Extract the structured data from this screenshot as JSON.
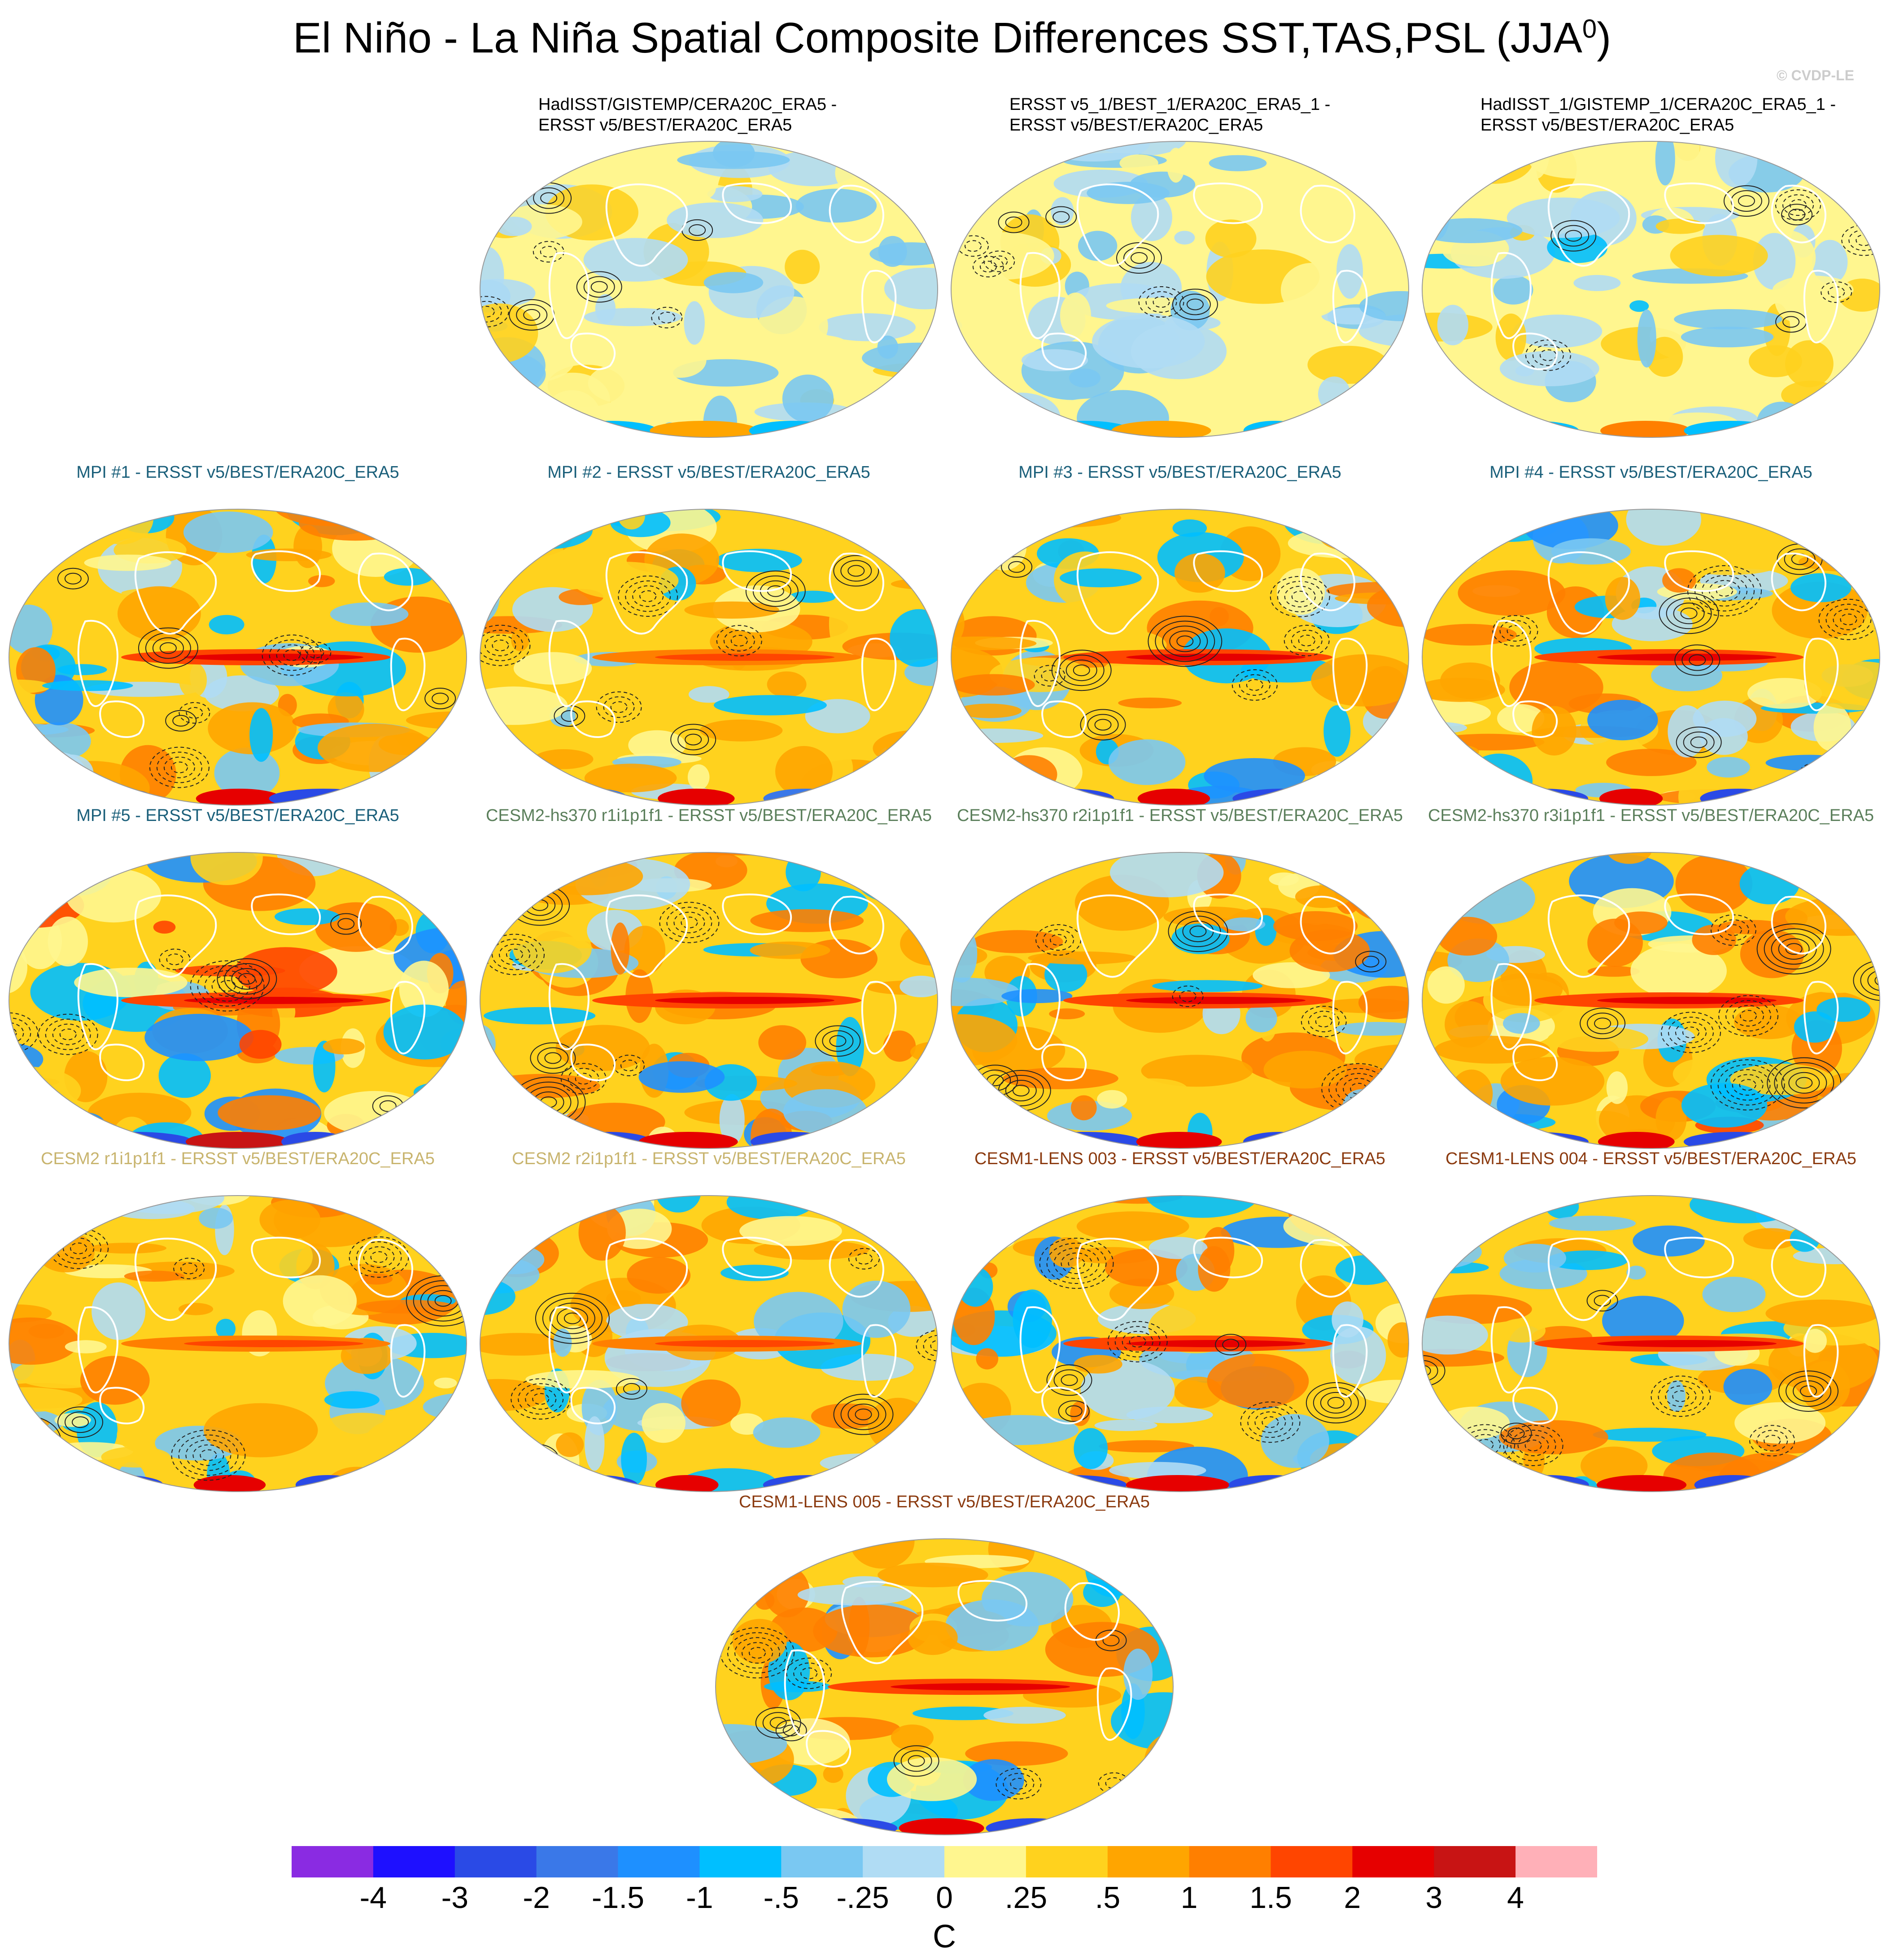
{
  "figure": {
    "title_main": "El Niño - La Niña Spatial Composite Differences SST,TAS,PSL (JJA",
    "title_sup": "0",
    "title_close": ")",
    "watermark": "© CVDP-LE"
  },
  "chart_data": {
    "type": "heatmap",
    "projection": "global-ellipse",
    "fields": [
      "SST",
      "TAS",
      "PSL"
    ],
    "season": "JJA0",
    "contours": "PSL (solid positive, dashed negative)",
    "colorbar": {
      "unit": "C",
      "ticks": [
        "-4",
        "-3",
        "-2",
        "-1.5",
        "-1",
        "-.5",
        "-.25",
        "0",
        ".25",
        ".5",
        "1",
        "1.5",
        "2",
        "3",
        "4"
      ],
      "colors": [
        "#8a2be2",
        "#1e10ff",
        "#2a4ae6",
        "#3a78e8",
        "#1e90ff",
        "#00bfff",
        "#7ac8f2",
        "#b0dcf4",
        "#fff68f",
        "#ffd21e",
        "#ffa500",
        "#ff7f00",
        "#ff4500",
        "#e60000",
        "#c81414",
        "#ffb0b8"
      ]
    },
    "panels": [
      {
        "id": "obs1",
        "label": "HadISST/GISTEMP/CERA20C_ERA5 -\nERSST v5/BEST/ERA20C_ERA5",
        "color": "#000000",
        "intensity": 0.35,
        "seed": 3
      },
      {
        "id": "obs2",
        "label": "ERSST v5_1/BEST_1/ERA20C_ERA5_1 -\nERSST v5/BEST/ERA20C_ERA5",
        "color": "#000000",
        "intensity": 0.35,
        "seed": 7
      },
      {
        "id": "obs3",
        "label": "HadISST_1/GISTEMP_1/CERA20C_ERA5_1 -\nERSST v5/BEST/ERA20C_ERA5",
        "color": "#000000",
        "intensity": 0.4,
        "seed": 11
      },
      {
        "id": "mpi1",
        "label": "MPI #1 - ERSST v5/BEST/ERA20C_ERA5",
        "color": "#1a5f7a",
        "intensity": 1.0,
        "seed": 13
      },
      {
        "id": "mpi2",
        "label": "MPI #2 - ERSST v5/BEST/ERA20C_ERA5",
        "color": "#1a5f7a",
        "intensity": 0.8,
        "seed": 17
      },
      {
        "id": "mpi3",
        "label": "MPI #3 - ERSST v5/BEST/ERA20C_ERA5",
        "color": "#1a5f7a",
        "intensity": 1.0,
        "seed": 19
      },
      {
        "id": "mpi4",
        "label": "MPI #4 - ERSST v5/BEST/ERA20C_ERA5",
        "color": "#1a5f7a",
        "intensity": 1.0,
        "seed": 23
      },
      {
        "id": "mpi5",
        "label": "MPI #5 - ERSST v5/BEST/ERA20C_ERA5",
        "color": "#1a5f7a",
        "intensity": 1.2,
        "seed": 29
      },
      {
        "id": "cesm2hs1",
        "label": "CESM2-hs370 r1i1p1f1 - ERSST v5/BEST/ERA20C_ERA5",
        "color": "#5b7f5b",
        "intensity": 1.0,
        "seed": 31
      },
      {
        "id": "cesm2hs2",
        "label": "CESM2-hs370 r2i1p1f1 - ERSST v5/BEST/ERA20C_ERA5",
        "color": "#5b7f5b",
        "intensity": 1.0,
        "seed": 37
      },
      {
        "id": "cesm2hs3",
        "label": "CESM2-hs370 r3i1p1f1 - ERSST v5/BEST/ERA20C_ERA5",
        "color": "#5b7f5b",
        "intensity": 1.0,
        "seed": 41
      },
      {
        "id": "cesm2r1",
        "label": "CESM2 r1i1p1f1 - ERSST v5/BEST/ERA20C_ERA5",
        "color": "#c8b46e",
        "intensity": 0.9,
        "seed": 43
      },
      {
        "id": "cesm2r2",
        "label": "CESM2 r2i1p1f1 - ERSST v5/BEST/ERA20C_ERA5",
        "color": "#c8b46e",
        "intensity": 0.9,
        "seed": 47
      },
      {
        "id": "lens003",
        "label": "CESM1-LENS 003 - ERSST v5/BEST/ERA20C_ERA5",
        "color": "#8b3a0f",
        "intensity": 1.0,
        "seed": 53
      },
      {
        "id": "lens004",
        "label": "CESM1-LENS 004 - ERSST v5/BEST/ERA20C_ERA5",
        "color": "#8b3a0f",
        "intensity": 1.0,
        "seed": 59
      },
      {
        "id": "lens005",
        "label": "CESM1-LENS 005 - ERSST v5/BEST/ERA20C_ERA5",
        "color": "#8b3a0f",
        "intensity": 1.0,
        "seed": 61
      }
    ]
  }
}
